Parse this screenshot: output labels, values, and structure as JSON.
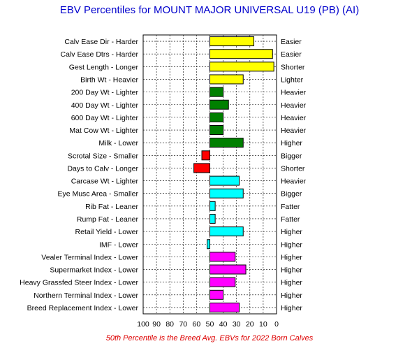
{
  "title": "EBV Percentiles for MOUNT MAJOR UNIVERSAL U19 (PB) (AI)",
  "footnote": "50th Percentile is the Breed Avg. EBVs for 2022 Born Calves",
  "colors": {
    "title": "#0000cc",
    "footnote": "#dd0000",
    "yellow": "#ffff00",
    "green": "#008000",
    "red": "#ff0000",
    "cyan": "#00ffff",
    "magenta": "#ff00ff"
  },
  "chart_data": {
    "type": "bar",
    "orientation": "horizontal",
    "xlim": [
      100,
      0
    ],
    "x_reversed": true,
    "baseline": 50,
    "x_ticks": [
      "100",
      "90",
      "80",
      "70",
      "60",
      "50",
      "40",
      "30",
      "20",
      "10",
      "0"
    ],
    "grid": true,
    "rows": [
      {
        "label": "Calv Ease Dir - Harder",
        "right": "Easier",
        "value": 17,
        "color": "yellow"
      },
      {
        "label": "Calv Ease Dtrs - Harder",
        "right": "Easier",
        "value": 3,
        "color": "yellow"
      },
      {
        "label": "Gest Length - Longer",
        "right": "Shorter",
        "value": 2,
        "color": "yellow"
      },
      {
        "label": "Birth Wt - Heavier",
        "right": "Lighter",
        "value": 25,
        "color": "yellow"
      },
      {
        "label": "200 Day Wt - Lighter",
        "right": "Heavier",
        "value": 40,
        "color": "green"
      },
      {
        "label": "400 Day Wt - Lighter",
        "right": "Heavier",
        "value": 36,
        "color": "green"
      },
      {
        "label": "600 Day Wt - Lighter",
        "right": "Heavier",
        "value": 40,
        "color": "green"
      },
      {
        "label": "Mat Cow Wt - Lighter",
        "right": "Heavier",
        "value": 40,
        "color": "green"
      },
      {
        "label": "Milk - Lower",
        "right": "Higher",
        "value": 25,
        "color": "green"
      },
      {
        "label": "Scrotal Size - Smaller",
        "right": "Bigger",
        "value": 56,
        "color": "red"
      },
      {
        "label": "Days to Calv - Longer",
        "right": "Shorter",
        "value": 62,
        "color": "red"
      },
      {
        "label": "Carcase Wt - Lighter",
        "right": "Heavier",
        "value": 28,
        "color": "cyan"
      },
      {
        "label": "Eye Musc Area - Smaller",
        "right": "Bigger",
        "value": 25,
        "color": "cyan"
      },
      {
        "label": "Rib Fat - Leaner",
        "right": "Fatter",
        "value": 46,
        "color": "cyan"
      },
      {
        "label": "Rump Fat - Leaner",
        "right": "Fatter",
        "value": 46,
        "color": "cyan"
      },
      {
        "label": "Retail Yield - Lower",
        "right": "Higher",
        "value": 25,
        "color": "cyan"
      },
      {
        "label": "IMF - Lower",
        "right": "Higher",
        "value": 52,
        "color": "cyan"
      },
      {
        "label": "Vealer Terminal Index - Lower",
        "right": "Higher",
        "value": 31,
        "color": "magenta"
      },
      {
        "label": "Supermarket Index - Lower",
        "right": "Higher",
        "value": 23,
        "color": "magenta"
      },
      {
        "label": "Heavy Grassfed Steer Index - Lower",
        "right": "Higher",
        "value": 31,
        "color": "magenta"
      },
      {
        "label": "Northern Terminal Index - Lower",
        "right": "Higher",
        "value": 40,
        "color": "magenta"
      },
      {
        "label": "Breed Replacement Index - Lower",
        "right": "Higher",
        "value": 28,
        "color": "magenta"
      }
    ]
  }
}
